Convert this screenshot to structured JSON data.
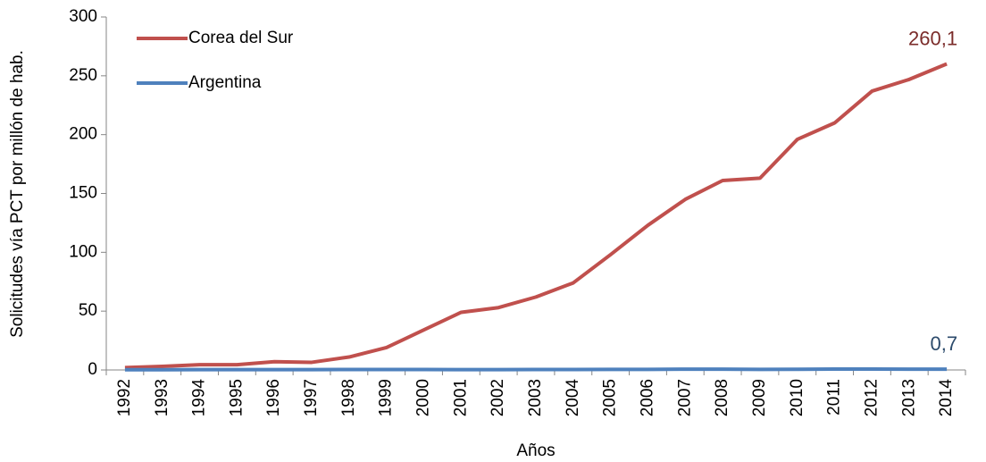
{
  "chart_data": {
    "type": "line",
    "x_label": "Años",
    "y_label": "Solicitudes vía PCT por millón de hab.",
    "categories": [
      "1992",
      "1993",
      "1994",
      "1995",
      "1996",
      "1997",
      "1998",
      "1999",
      "2000",
      "2001",
      "2002",
      "2003",
      "2004",
      "2005",
      "2006",
      "2007",
      "2008",
      "2009",
      "2010",
      "2011",
      "2012",
      "2013",
      "2014"
    ],
    "series": [
      {
        "name": "Corea del Sur",
        "color": "#c0504d",
        "values": [
          2,
          3,
          4.5,
          4.5,
          7,
          6.5,
          11,
          19,
          34,
          49,
          53,
          62,
          74,
          98,
          123,
          145,
          161,
          163,
          196,
          210,
          237,
          247,
          260.1
        ],
        "value_labels": [
          null,
          null,
          null,
          null,
          null,
          null,
          null,
          null,
          null,
          null,
          null,
          null,
          null,
          null,
          null,
          null,
          null,
          null,
          null,
          null,
          null,
          null,
          "260,1"
        ]
      },
      {
        "name": "Argentina",
        "color": "#4f81bd",
        "values": [
          0.2,
          0.2,
          0.3,
          0.3,
          0.3,
          0.3,
          0.4,
          0.4,
          0.4,
          0.3,
          0.3,
          0.4,
          0.4,
          0.5,
          0.5,
          0.7,
          0.7,
          0.5,
          0.6,
          0.8,
          0.8,
          0.7,
          0.7
        ],
        "value_labels": [
          null,
          null,
          null,
          null,
          null,
          null,
          null,
          null,
          null,
          null,
          null,
          null,
          null,
          null,
          null,
          null,
          null,
          null,
          null,
          null,
          null,
          null,
          "0,7"
        ]
      }
    ],
    "ylim": [
      0,
      300
    ],
    "yticks": [
      0,
      50,
      100,
      150,
      200,
      250,
      300
    ],
    "grid": false,
    "legend": "upper left"
  }
}
